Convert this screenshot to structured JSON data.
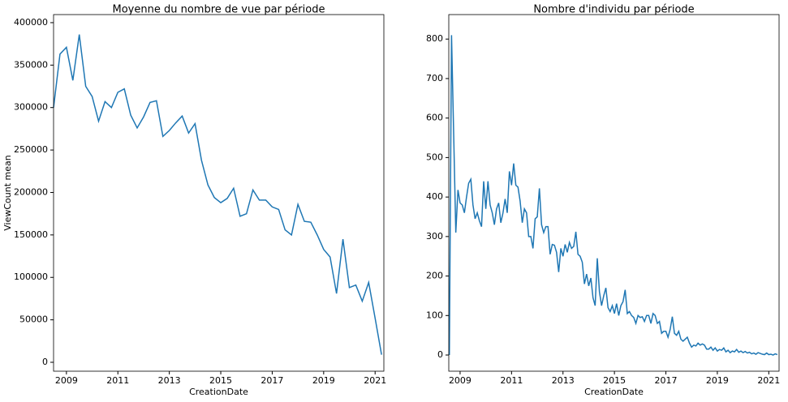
{
  "chart_data": [
    {
      "type": "line",
      "title": "Moyenne du nombre de vue par période",
      "xlabel": "CreationDate",
      "ylabel": "ViewCount mean",
      "color": "#1f77b4",
      "x": [
        2008.5,
        2008.75,
        2009,
        2009.25,
        2009.5,
        2009.75,
        2010,
        2010.25,
        2010.5,
        2010.75,
        2011,
        2011.25,
        2011.5,
        2011.75,
        2012,
        2012.25,
        2012.5,
        2012.75,
        2013,
        2013.25,
        2013.5,
        2013.75,
        2014,
        2014.25,
        2014.5,
        2014.75,
        2015,
        2015.25,
        2015.5,
        2015.75,
        2016,
        2016.25,
        2016.5,
        2016.75,
        2017,
        2017.25,
        2017.5,
        2017.75,
        2018,
        2018.25,
        2018.5,
        2018.75,
        2019,
        2019.25,
        2019.5,
        2019.75,
        2020,
        2020.25,
        2020.5,
        2020.75,
        2021,
        2021.25
      ],
      "values": [
        300000,
        363000,
        371000,
        332000,
        386000,
        325000,
        313000,
        284000,
        307000,
        300000,
        318000,
        322000,
        291000,
        276000,
        289000,
        306000,
        308000,
        266000,
        273000,
        282000,
        290000,
        270000,
        281000,
        238000,
        209000,
        194000,
        188000,
        193000,
        205000,
        172000,
        175000,
        203000,
        191000,
        191000,
        183000,
        180000,
        156000,
        150000,
        186000,
        166000,
        165000,
        150000,
        133000,
        124000,
        81000,
        145000,
        88000,
        91000,
        72000,
        94000,
        52000,
        9000
      ],
      "xlim": [
        2008.5,
        2021.34
      ],
      "xticks": [
        2009,
        2011,
        2013,
        2015,
        2017,
        2019,
        2021
      ],
      "ylim": [
        -10500,
        409500
      ],
      "yticks": [
        0,
        50000,
        100000,
        150000,
        200000,
        250000,
        300000,
        350000,
        400000
      ]
    },
    {
      "type": "line",
      "title": "Nombre d'individu par période",
      "xlabel": "CreationDate",
      "color": "#1f77b4",
      "x": [
        2008.583,
        2008.667,
        2008.75,
        2008.833,
        2008.917,
        2009,
        2009.083,
        2009.167,
        2009.25,
        2009.333,
        2009.417,
        2009.5,
        2009.583,
        2009.667,
        2009.75,
        2009.833,
        2009.917,
        2010,
        2010.083,
        2010.167,
        2010.25,
        2010.333,
        2010.417,
        2010.5,
        2010.583,
        2010.667,
        2010.75,
        2010.833,
        2010.917,
        2011,
        2011.083,
        2011.167,
        2011.25,
        2011.333,
        2011.417,
        2011.5,
        2011.583,
        2011.667,
        2011.75,
        2011.833,
        2011.917,
        2012,
        2012.083,
        2012.167,
        2012.25,
        2012.333,
        2012.417,
        2012.5,
        2012.583,
        2012.667,
        2012.75,
        2012.833,
        2012.917,
        2013,
        2013.083,
        2013.167,
        2013.25,
        2013.333,
        2013.417,
        2013.5,
        2013.583,
        2013.667,
        2013.75,
        2013.833,
        2013.917,
        2014,
        2014.083,
        2014.167,
        2014.25,
        2014.333,
        2014.417,
        2014.5,
        2014.583,
        2014.667,
        2014.75,
        2014.833,
        2014.917,
        2015,
        2015.083,
        2015.167,
        2015.25,
        2015.333,
        2015.417,
        2015.5,
        2015.583,
        2015.667,
        2015.75,
        2015.833,
        2015.917,
        2016,
        2016.083,
        2016.167,
        2016.25,
        2016.333,
        2016.417,
        2016.5,
        2016.583,
        2016.667,
        2016.75,
        2016.833,
        2016.917,
        2017,
        2017.083,
        2017.167,
        2017.25,
        2017.333,
        2017.417,
        2017.5,
        2017.583,
        2017.667,
        2017.75,
        2017.833,
        2017.917,
        2018,
        2018.083,
        2018.167,
        2018.25,
        2018.333,
        2018.417,
        2018.5,
        2018.583,
        2018.667,
        2018.75,
        2018.833,
        2018.917,
        2019,
        2019.083,
        2019.167,
        2019.25,
        2019.333,
        2019.417,
        2019.5,
        2019.583,
        2019.667,
        2019.75,
        2019.833,
        2019.917,
        2020,
        2020.083,
        2020.167,
        2020.25,
        2020.333,
        2020.417,
        2020.5,
        2020.583,
        2020.667,
        2020.75,
        2020.833,
        2020.917,
        2021,
        2021.083,
        2021.167,
        2021.25,
        2021.333
      ],
      "values": [
        0,
        810,
        560,
        310,
        418,
        385,
        380,
        360,
        400,
        435,
        445,
        380,
        345,
        360,
        340,
        325,
        440,
        370,
        440,
        380,
        360,
        330,
        370,
        385,
        335,
        360,
        395,
        360,
        465,
        430,
        485,
        430,
        425,
        390,
        335,
        370,
        360,
        300,
        300,
        270,
        345,
        350,
        422,
        330,
        310,
        325,
        325,
        255,
        280,
        278,
        260,
        210,
        270,
        250,
        280,
        260,
        285,
        270,
        275,
        312,
        255,
        250,
        235,
        180,
        205,
        175,
        195,
        145,
        125,
        245,
        160,
        125,
        150,
        170,
        120,
        110,
        125,
        105,
        130,
        100,
        125,
        135,
        165,
        105,
        110,
        100,
        95,
        80,
        100,
        95,
        97,
        85,
        100,
        100,
        80,
        105,
        100,
        80,
        85,
        55,
        60,
        60,
        45,
        65,
        97,
        55,
        50,
        60,
        40,
        35,
        40,
        45,
        30,
        20,
        25,
        23,
        30,
        25,
        28,
        25,
        15,
        15,
        20,
        12,
        18,
        10,
        14,
        12,
        18,
        8,
        12,
        6,
        10,
        8,
        14,
        7,
        10,
        6,
        9,
        5,
        7,
        3,
        5,
        2,
        6,
        4,
        2,
        1,
        5,
        1,
        2,
        0,
        3,
        1
      ],
      "xlim": [
        2008.56,
        2021.4
      ],
      "xticks": [
        2009,
        2011,
        2013,
        2015,
        2017,
        2019,
        2021
      ],
      "ylim": [
        -41,
        862
      ],
      "yticks": [
        0,
        100,
        200,
        300,
        400,
        500,
        600,
        700,
        800
      ]
    }
  ]
}
